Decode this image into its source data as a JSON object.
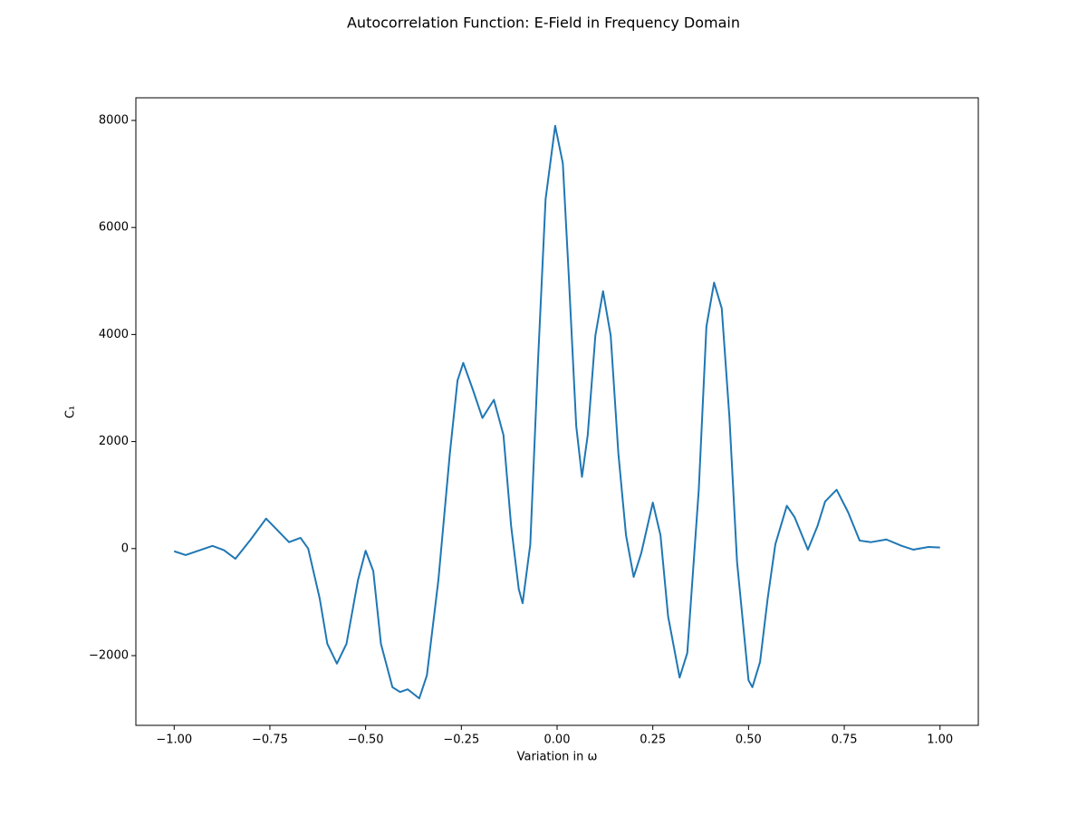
{
  "chart_data": {
    "type": "line",
    "title": "Autocorrelation Function: E-Field in Frequency Domain",
    "x_label": "Variation in ω",
    "y_label": "C₁",
    "xlim": [
      -1.1,
      1.1
    ],
    "ylim": [
      -3303,
      8423
    ],
    "xticks": [
      {
        "value": -1,
        "label": "−1.00"
      },
      {
        "value": -0.75,
        "label": "−0.75"
      },
      {
        "value": -0.5,
        "label": "−0.50"
      },
      {
        "value": -0.25,
        "label": "−0.25"
      },
      {
        "value": 0,
        "label": "0.00"
      },
      {
        "value": 0.25,
        "label": "0.25"
      },
      {
        "value": 0.5,
        "label": "0.50"
      },
      {
        "value": 0.75,
        "label": "0.75"
      },
      {
        "value": 1,
        "label": "1.00"
      }
    ],
    "yticks": [
      {
        "value": -2000,
        "label": "−2000"
      },
      0,
      2000,
      4000,
      6000,
      8000
    ],
    "grid": false,
    "x": [
      -1.0,
      -0.97,
      -0.9,
      -0.87,
      -0.84,
      -0.8,
      -0.76,
      -0.73,
      -0.7,
      -0.67,
      -0.65,
      -0.62,
      -0.6,
      -0.575,
      -0.55,
      -0.52,
      -0.5,
      -0.48,
      -0.46,
      -0.43,
      -0.41,
      -0.39,
      -0.36,
      -0.34,
      -0.31,
      -0.28,
      -0.26,
      -0.245,
      -0.22,
      -0.195,
      -0.165,
      -0.14,
      -0.12,
      -0.1,
      -0.09,
      -0.07,
      -0.05,
      -0.03,
      -0.005,
      0.015,
      0.03,
      0.05,
      0.065,
      0.08,
      0.1,
      0.12,
      0.14,
      0.16,
      0.18,
      0.2,
      0.22,
      0.25,
      0.27,
      0.29,
      0.32,
      0.34,
      0.37,
      0.39,
      0.41,
      0.43,
      0.45,
      0.47,
      0.5,
      0.51,
      0.53,
      0.55,
      0.57,
      0.6,
      0.62,
      0.655,
      0.68,
      0.7,
      0.73,
      0.76,
      0.79,
      0.82,
      0.86,
      0.9,
      0.93,
      0.97,
      1.0
    ],
    "series": [
      {
        "color": "#1f77b4",
        "values": [
          -50,
          -120,
          50,
          -30,
          -190,
          170,
          560,
          340,
          120,
          200,
          0,
          -930,
          -1780,
          -2150,
          -1780,
          -590,
          -40,
          -420,
          -1780,
          -2590,
          -2680,
          -2630,
          -2800,
          -2370,
          -590,
          1780,
          3140,
          3470,
          2970,
          2440,
          2780,
          2120,
          420,
          -760,
          -1020,
          80,
          3470,
          6530,
          7900,
          7200,
          5170,
          2290,
          1340,
          2120,
          3980,
          4810,
          3980,
          1780,
          250,
          -530,
          -80,
          860,
          250,
          -1270,
          -2410,
          -1950,
          1100,
          4150,
          4970,
          4490,
          2460,
          -250,
          -2460,
          -2590,
          -2120,
          -930,
          80,
          800,
          590,
          -20,
          420,
          880,
          1100,
          680,
          150,
          120,
          170,
          50,
          -20,
          30,
          20
        ]
      }
    ]
  }
}
